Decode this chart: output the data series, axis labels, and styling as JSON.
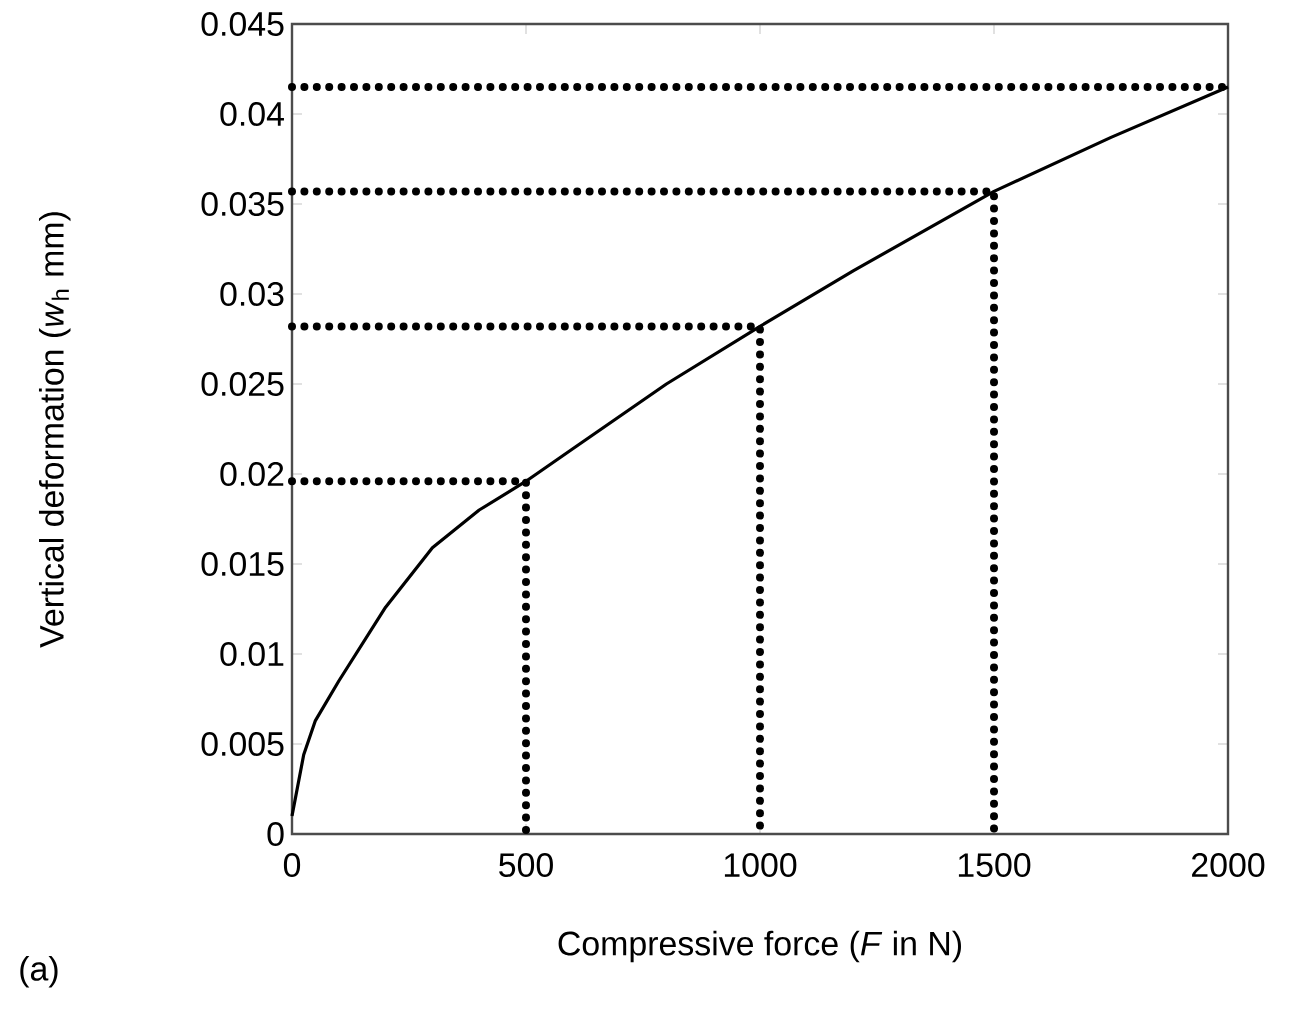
{
  "chart_data": {
    "type": "line",
    "xlabel": "Compressive force (*F* in N)",
    "ylabel": "Vertical deformation (*w*$_{h}$ mm)",
    "annotations": [
      "(a)"
    ],
    "xlim": [
      0,
      2000
    ],
    "ylim": [
      0,
      0.045
    ],
    "xticks": [
      0,
      500,
      1000,
      1500,
      2000
    ],
    "yticks": [
      0,
      0.005,
      0.01,
      0.015,
      0.02,
      0.025,
      0.03,
      0.035,
      0.04,
      0.045
    ],
    "marker": "none",
    "series": [
      {
        "color": "#000000",
        "line_style": "solid",
        "x": [
          0,
          25,
          50,
          100,
          200,
          300,
          400,
          500,
          600,
          800,
          1000,
          1200,
          1500,
          1750,
          2000
        ],
        "values": [
          0.001,
          0.0044,
          0.0063,
          0.0085,
          0.0126,
          0.0159,
          0.018,
          0.0196,
          0.0214,
          0.025,
          0.0282,
          0.0313,
          0.0357,
          0.0387,
          0.0415
        ]
      },
      {
        "color": "#000000",
        "line_style": "dotted",
        "x": [
          0,
          500,
          500
        ],
        "values": [
          0.0196,
          0.0196,
          0
        ]
      },
      {
        "color": "#000000",
        "line_style": "dotted",
        "x": [
          0,
          1000,
          1000
        ],
        "values": [
          0.0282,
          0.0282,
          0
        ]
      },
      {
        "color": "#000000",
        "line_style": "dotted",
        "x": [
          0,
          1500,
          1500
        ],
        "values": [
          0.0357,
          0.0357,
          0
        ]
      },
      {
        "color": "#000000",
        "line_style": "dotted",
        "x": [
          0,
          2000
        ],
        "values": [
          0.0415,
          0.0415
        ]
      }
    ]
  }
}
